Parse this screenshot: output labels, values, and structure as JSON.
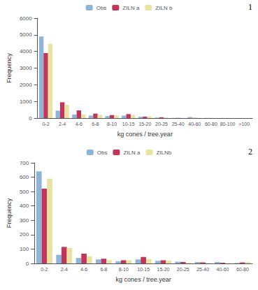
{
  "chart_data": [
    {
      "type": "bar",
      "annotation": "1",
      "ylabel": "Frequency",
      "xlabel": "kg cones / tree.year",
      "categories": [
        "0-2",
        "2-4",
        "4-6",
        "6-8",
        "8-10",
        "10-15",
        "15-20",
        "20-25",
        "25-40",
        "40-60",
        "60-80",
        "80-100",
        ">100"
      ],
      "series": [
        {
          "name": "Obs",
          "color": "#8EB4D8",
          "values": [
            4900,
            450,
            220,
            150,
            120,
            150,
            80,
            30,
            10,
            60,
            10,
            5,
            3
          ]
        },
        {
          "name": "ZILN a",
          "color": "#C2345A",
          "values": [
            3900,
            950,
            460,
            270,
            180,
            240,
            90,
            50,
            10,
            10,
            5,
            2,
            1
          ]
        },
        {
          "name": "ZILN b",
          "color": "#E8E4A0",
          "values": [
            4450,
            800,
            220,
            190,
            170,
            190,
            100,
            40,
            10,
            10,
            5,
            2,
            1
          ]
        }
      ],
      "ylim": [
        0,
        6000
      ],
      "yticks": [
        0,
        1000,
        2000,
        3000,
        4000,
        5000,
        6000
      ],
      "grid": false,
      "legend": "upper center"
    },
    {
      "type": "bar",
      "annotation": "2",
      "ylabel": "Frequency",
      "xlabel": "kg cones / tree.year",
      "categories": [
        "0-2",
        "2-4",
        "4-6",
        "6-8",
        "8-10",
        "10-15",
        "15-20",
        "20-25",
        "25-40",
        "40-60",
        "60-80"
      ],
      "series": [
        {
          "name": "Obs",
          "color": "#8EB4D8",
          "values": [
            640,
            60,
            38,
            28,
            15,
            28,
            18,
            12,
            10,
            10,
            4
          ]
        },
        {
          "name": "ZILN a",
          "color": "#C2345A",
          "values": [
            520,
            115,
            68,
            33,
            22,
            45,
            22,
            10,
            7,
            5,
            7
          ]
        },
        {
          "name": "ZILNb",
          "color": "#E8E4A0",
          "values": [
            590,
            108,
            50,
            23,
            22,
            30,
            20,
            5,
            4,
            3,
            10
          ]
        }
      ],
      "ylim": [
        0,
        700
      ],
      "yticks": [
        0,
        100,
        200,
        300,
        400,
        500,
        600,
        700
      ],
      "grid": false,
      "legend": "upper center"
    }
  ]
}
